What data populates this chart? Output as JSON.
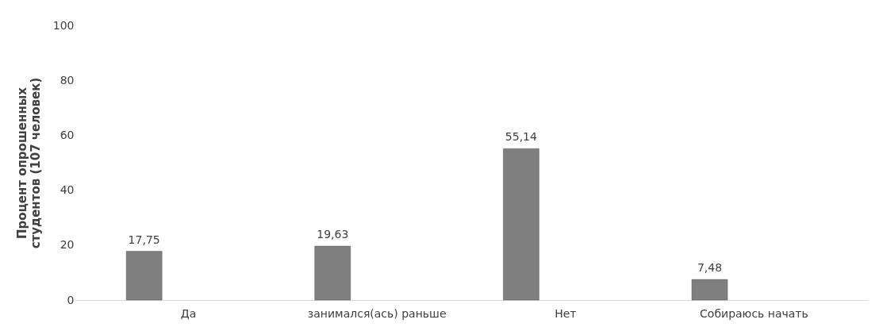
{
  "chart_data": {
    "type": "bar",
    "categories": [
      "Да",
      "занимался(ась) раньше",
      "Нет",
      "Собираюсь начать"
    ],
    "values": [
      17.75,
      19.63,
      55.14,
      7.48
    ],
    "value_labels": [
      "17,75",
      "19,63",
      "55,14",
      "7,48"
    ],
    "color": "#7f7f7f",
    "ylabel": "Процент опрошенных\nстудентов (107 человек)",
    "ylim": [
      0,
      100
    ],
    "yticks": [
      0,
      20,
      40,
      60,
      80,
      100
    ],
    "grid": false
  }
}
